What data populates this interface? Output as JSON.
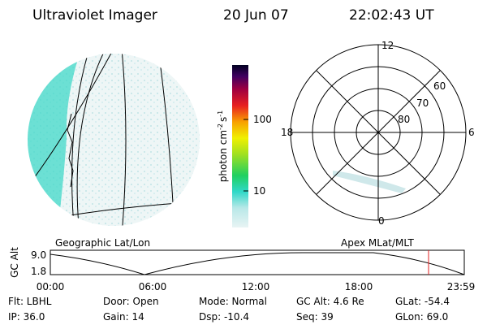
{
  "header": {
    "title": "Ultraviolet Imager",
    "date": "20 Jun 07",
    "time": "22:02:43 UT"
  },
  "colorbar": {
    "label": {
      "base": "photon cm",
      "exp1": "-2",
      "unit2": "s",
      "exp2": "-1"
    },
    "ticks": [
      "100",
      "10"
    ]
  },
  "polar": {
    "mlt_labels": [
      "12",
      "18",
      "6",
      "0"
    ],
    "lat_labels": [
      "60",
      "70",
      "80"
    ]
  },
  "panels": {
    "left": "Geographic Lat/Lon",
    "right": "Apex MLat/MLT"
  },
  "altitude": {
    "ylabel": "GC Alt",
    "yticks": [
      "9.0",
      "1.8"
    ],
    "xticks": [
      "00:00",
      "06:00",
      "12:00",
      "18:00",
      "23:59"
    ]
  },
  "footer": [
    [
      "Flt: LBHL",
      "Door: Open",
      "Mode: Normal",
      "GC Alt: 4.6 Re",
      "GLat: -54.4"
    ],
    [
      "IP: 36.0",
      "Gain: 14",
      "Dsp: -10.4",
      "Seq: 39",
      "GLon: 69.0"
    ]
  ]
}
